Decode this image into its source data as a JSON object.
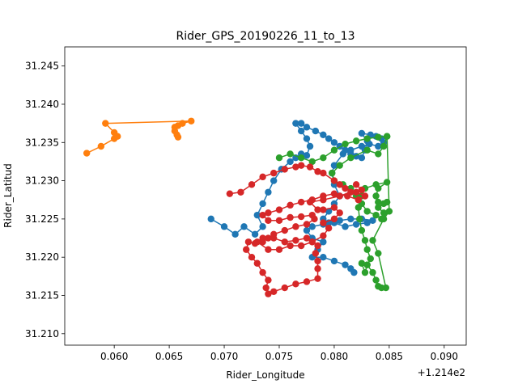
{
  "chart_data": {
    "type": "line",
    "title": "Rider_GPS_20190226_11_to_13",
    "xlabel": "Rider_Longitude",
    "ylabel": "Rider_Latitud",
    "x_offset_label": "+1.214e2",
    "xlim": [
      0.0555,
      0.092
    ],
    "ylim": [
      31.2085,
      31.2475
    ],
    "x_ticks": [
      0.06,
      0.065,
      0.07,
      0.075,
      0.08,
      0.085,
      0.09
    ],
    "x_tick_labels": [
      "0.060",
      "0.065",
      "0.070",
      "0.075",
      "0.080",
      "0.085",
      "0.090"
    ],
    "y_ticks": [
      31.21,
      31.215,
      31.22,
      31.225,
      31.23,
      31.235,
      31.24,
      31.245
    ],
    "y_tick_labels": [
      "31.210",
      "31.215",
      "31.220",
      "31.225",
      "31.230",
      "31.235",
      "31.240",
      "31.245"
    ],
    "grid": false,
    "series": [
      {
        "color": "#1f77b4",
        "points": [
          [
            0.0688,
            31.225
          ],
          [
            0.07,
            31.224
          ],
          [
            0.071,
            31.223
          ],
          [
            0.0718,
            31.224
          ],
          [
            0.0728,
            31.223
          ],
          [
            0.0735,
            31.224
          ],
          [
            0.073,
            31.2255
          ],
          [
            0.0735,
            31.227
          ],
          [
            0.074,
            31.2285
          ],
          [
            0.0745,
            31.23
          ],
          [
            0.0752,
            31.2315
          ],
          [
            0.076,
            31.2325
          ],
          [
            0.0765,
            31.233
          ],
          [
            0.077,
            31.2335
          ],
          [
            0.0775,
            31.2333
          ],
          [
            0.0778,
            31.2345
          ],
          [
            0.0775,
            31.2355
          ],
          [
            0.077,
            31.2365
          ],
          [
            0.0765,
            31.2375
          ],
          [
            0.077,
            31.2375
          ],
          [
            0.0775,
            31.237
          ],
          [
            0.0783,
            31.2365
          ],
          [
            0.079,
            31.236
          ],
          [
            0.0795,
            31.2355
          ],
          [
            0.08,
            31.235
          ],
          [
            0.0805,
            31.2345
          ],
          [
            0.081,
            31.234
          ],
          [
            0.0815,
            31.2335
          ],
          [
            0.082,
            31.2332
          ],
          [
            0.0825,
            31.233
          ],
          [
            0.0828,
            31.234
          ],
          [
            0.083,
            31.2352
          ],
          [
            0.0825,
            31.2362
          ],
          [
            0.0833,
            31.236
          ],
          [
            0.0838,
            31.2358
          ],
          [
            0.0843,
            31.2355
          ],
          [
            0.0845,
            31.235
          ],
          [
            0.084,
            31.2345
          ],
          [
            0.0832,
            31.2348
          ],
          [
            0.0825,
            31.2345
          ],
          [
            0.0815,
            31.234
          ],
          [
            0.0808,
            31.2335
          ],
          [
            0.08,
            31.232
          ],
          [
            0.0798,
            31.231
          ],
          [
            0.08,
            31.2295
          ],
          [
            0.0805,
            31.228
          ],
          [
            0.08,
            31.227
          ],
          [
            0.0795,
            31.226
          ],
          [
            0.079,
            31.225
          ],
          [
            0.0795,
            31.2245
          ],
          [
            0.0805,
            31.2248
          ],
          [
            0.0815,
            31.225
          ],
          [
            0.0825,
            31.225
          ],
          [
            0.0835,
            31.2248
          ],
          [
            0.083,
            31.2245
          ],
          [
            0.082,
            31.2243
          ],
          [
            0.081,
            31.224
          ],
          [
            0.08,
            31.2245
          ],
          [
            0.079,
            31.2243
          ],
          [
            0.078,
            31.224
          ],
          [
            0.0775,
            31.2235
          ],
          [
            0.078,
            31.2225
          ],
          [
            0.079,
            31.222
          ],
          [
            0.0785,
            31.221
          ],
          [
            0.078,
            31.22
          ],
          [
            0.079,
            31.22
          ],
          [
            0.08,
            31.2195
          ],
          [
            0.081,
            31.219
          ],
          [
            0.0815,
            31.2185
          ],
          [
            0.0818,
            31.218
          ]
        ]
      },
      {
        "color": "#ff7f0e",
        "points": [
          [
            0.0575,
            31.2336
          ],
          [
            0.0588,
            31.2345
          ],
          [
            0.06,
            31.2355
          ],
          [
            0.0603,
            31.2358
          ],
          [
            0.06,
            31.2363
          ],
          [
            0.0592,
            31.2375
          ],
          [
            0.067,
            31.2378
          ],
          [
            0.0662,
            31.2375
          ],
          [
            0.0658,
            31.2372
          ],
          [
            0.0655,
            31.237
          ],
          [
            0.0655,
            31.2365
          ],
          [
            0.0657,
            31.236
          ],
          [
            0.0658,
            31.2357
          ]
        ]
      },
      {
        "color": "#2ca02c",
        "points": [
          [
            0.075,
            31.233
          ],
          [
            0.076,
            31.2335
          ],
          [
            0.077,
            31.233
          ],
          [
            0.078,
            31.2325
          ],
          [
            0.079,
            31.233
          ],
          [
            0.08,
            31.234
          ],
          [
            0.081,
            31.2348
          ],
          [
            0.082,
            31.2352
          ],
          [
            0.083,
            31.2355
          ],
          [
            0.084,
            31.2357
          ],
          [
            0.0848,
            31.2358
          ],
          [
            0.0845,
            31.2345
          ],
          [
            0.084,
            31.2335
          ],
          [
            0.083,
            31.234
          ],
          [
            0.0815,
            31.233
          ],
          [
            0.0805,
            31.232
          ],
          [
            0.0798,
            31.231
          ],
          [
            0.08,
            31.23
          ],
          [
            0.0808,
            31.2295
          ],
          [
            0.0815,
            31.229
          ],
          [
            0.082,
            31.228
          ],
          [
            0.0825,
            31.227
          ],
          [
            0.083,
            31.226
          ],
          [
            0.0838,
            31.2255
          ],
          [
            0.0843,
            31.225
          ],
          [
            0.0845,
            31.2258
          ],
          [
            0.084,
            31.2265
          ],
          [
            0.0845,
            31.227
          ],
          [
            0.0848,
            31.2272
          ],
          [
            0.084,
            31.2272
          ],
          [
            0.0838,
            31.228
          ],
          [
            0.084,
            31.229
          ],
          [
            0.0848,
            31.2298
          ],
          [
            0.0838,
            31.2295
          ],
          [
            0.0828,
            31.229
          ],
          [
            0.0825,
            31.228
          ],
          [
            0.0822,
            31.2265
          ],
          [
            0.0823,
            31.225
          ],
          [
            0.0825,
            31.2235
          ],
          [
            0.0828,
            31.2222
          ],
          [
            0.083,
            31.221
          ],
          [
            0.0833,
            31.2198
          ],
          [
            0.083,
            31.219
          ],
          [
            0.0828,
            31.218
          ],
          [
            0.0825,
            31.2192
          ],
          [
            0.083,
            31.219
          ],
          [
            0.0835,
            31.218
          ],
          [
            0.0838,
            31.217
          ],
          [
            0.084,
            31.2162
          ],
          [
            0.0843,
            31.216
          ],
          [
            0.0847,
            31.216
          ],
          [
            0.084,
            31.2205
          ],
          [
            0.0835,
            31.2222
          ],
          [
            0.0845,
            31.225
          ],
          [
            0.085,
            31.226
          ],
          [
            0.0848,
            31.2358
          ]
        ]
      },
      {
        "color": "#d62728",
        "points": [
          [
            0.0705,
            31.2283
          ],
          [
            0.0715,
            31.2285
          ],
          [
            0.0725,
            31.2295
          ],
          [
            0.0735,
            31.2305
          ],
          [
            0.0745,
            31.231
          ],
          [
            0.0755,
            31.2315
          ],
          [
            0.0765,
            31.2318
          ],
          [
            0.077,
            31.232
          ],
          [
            0.0778,
            31.2318
          ],
          [
            0.0785,
            31.2312
          ],
          [
            0.079,
            31.231
          ],
          [
            0.08,
            31.23
          ],
          [
            0.0805,
            31.2295
          ],
          [
            0.081,
            31.229
          ],
          [
            0.082,
            31.2285
          ],
          [
            0.0828,
            31.228
          ],
          [
            0.0822,
            31.2275
          ],
          [
            0.0812,
            31.228
          ],
          [
            0.08,
            31.2283
          ],
          [
            0.079,
            31.228
          ],
          [
            0.078,
            31.2275
          ],
          [
            0.077,
            31.2272
          ],
          [
            0.076,
            31.2268
          ],
          [
            0.075,
            31.2262
          ],
          [
            0.074,
            31.2258
          ],
          [
            0.0735,
            31.2255
          ],
          [
            0.074,
            31.2248
          ],
          [
            0.075,
            31.2248
          ],
          [
            0.076,
            31.2252
          ],
          [
            0.077,
            31.2253
          ],
          [
            0.078,
            31.2255
          ],
          [
            0.0782,
            31.225
          ],
          [
            0.0775,
            31.2243
          ],
          [
            0.0765,
            31.224
          ],
          [
            0.0755,
            31.2235
          ],
          [
            0.0745,
            31.223
          ],
          [
            0.074,
            31.2225
          ],
          [
            0.0735,
            31.222
          ],
          [
            0.0728,
            31.2218
          ],
          [
            0.0722,
            31.222
          ],
          [
            0.072,
            31.221
          ],
          [
            0.0725,
            31.22
          ],
          [
            0.073,
            31.2192
          ],
          [
            0.0735,
            31.218
          ],
          [
            0.074,
            31.217
          ],
          [
            0.0738,
            31.216
          ],
          [
            0.074,
            31.2152
          ],
          [
            0.0745,
            31.2155
          ],
          [
            0.0755,
            31.216
          ],
          [
            0.0765,
            31.2165
          ],
          [
            0.0775,
            31.2168
          ],
          [
            0.0785,
            31.2172
          ],
          [
            0.0785,
            31.2185
          ],
          [
            0.0785,
            31.2195
          ],
          [
            0.0783,
            31.2205
          ],
          [
            0.0785,
            31.2215
          ],
          [
            0.078,
            31.222
          ],
          [
            0.077,
            31.2215
          ],
          [
            0.076,
            31.2215
          ],
          [
            0.075,
            31.221
          ],
          [
            0.074,
            31.221
          ],
          [
            0.073,
            31.222
          ],
          [
            0.0735,
            31.2225
          ],
          [
            0.0745,
            31.2225
          ],
          [
            0.0755,
            31.222
          ],
          [
            0.0765,
            31.2222
          ],
          [
            0.0775,
            31.2225
          ],
          [
            0.078,
            31.222
          ],
          [
            0.079,
            31.2228
          ],
          [
            0.0795,
            31.2238
          ],
          [
            0.079,
            31.2245
          ],
          [
            0.08,
            31.225
          ],
          [
            0.0805,
            31.2258
          ],
          [
            0.08,
            31.2265
          ],
          [
            0.079,
            31.2262
          ],
          [
            0.0785,
            31.2262
          ],
          [
            0.0778,
            31.2272
          ],
          [
            0.079,
            31.2275
          ],
          [
            0.0805,
            31.228
          ],
          [
            0.0815,
            31.2285
          ],
          [
            0.0825,
            31.2288
          ],
          [
            0.082,
            31.2295
          ]
        ]
      }
    ]
  }
}
